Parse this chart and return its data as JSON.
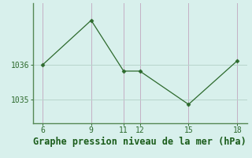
{
  "x": [
    6,
    9,
    11,
    12,
    15,
    18
  ],
  "y": [
    1036.0,
    1037.3,
    1035.82,
    1035.82,
    1034.85,
    1036.12
  ],
  "line_color": "#2d6a2d",
  "marker_color": "#2d6a2d",
  "bg_color": "#d8f0ec",
  "grid_color_v": "#c4afc4",
  "grid_color_h": "#b8d4cc",
  "xlabel": "Graphe pression niveau de la mer (hPa)",
  "xlabel_color": "#1a5c1a",
  "xlabel_fontsize": 8.5,
  "xlim": [
    5.4,
    18.6
  ],
  "ylim": [
    1034.3,
    1037.8
  ],
  "xticks": [
    6,
    9,
    11,
    12,
    15,
    18
  ],
  "ytick_values": [
    1035.0,
    1036.0
  ],
  "ytick_labels": [
    "1035",
    "1036"
  ],
  "spine_color": "#558855",
  "tick_color": "#2d6a2d",
  "tick_fontsize": 7
}
